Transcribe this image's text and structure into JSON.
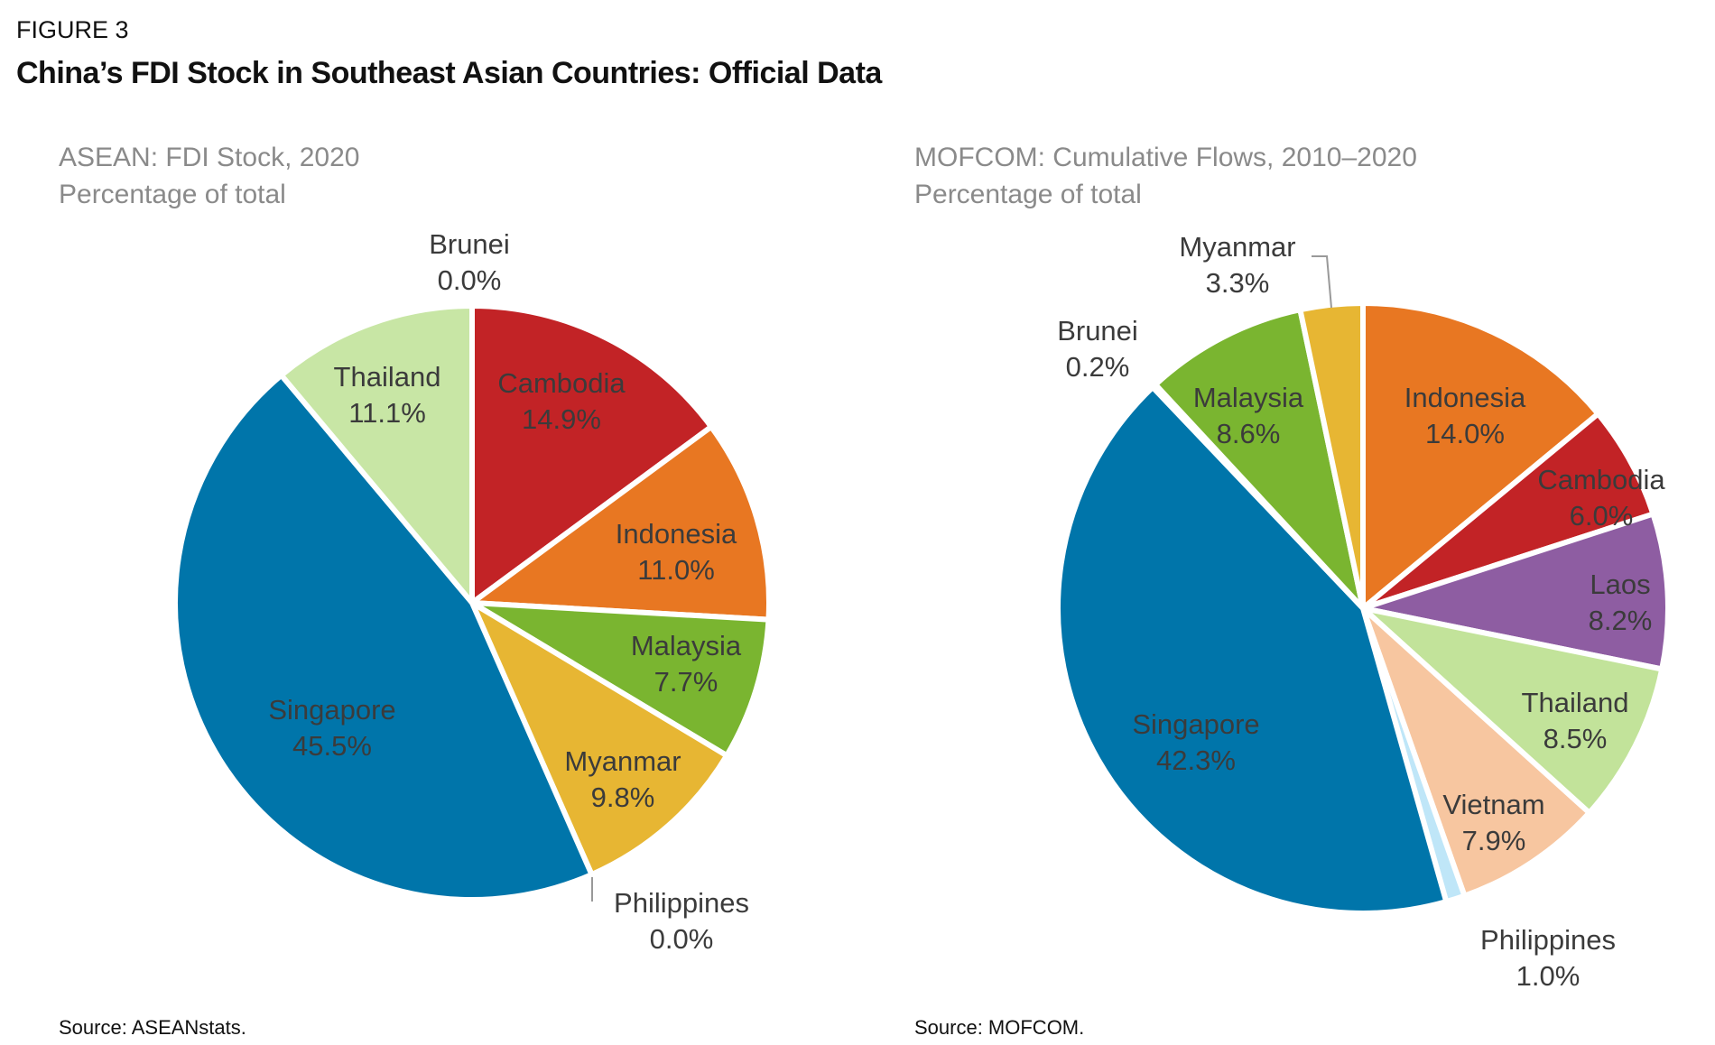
{
  "figure_label": "FIGURE 3",
  "title": "China’s FDI Stock in Southeast Asian Countries: Official Data",
  "chart_data": [
    {
      "type": "pie",
      "title": "ASEAN: FDI Stock, 2020",
      "subtitle": "Percentage of total",
      "source": "Source: ASEANstats.",
      "slices": [
        {
          "label": "Cambodia",
          "value": 14.9,
          "display": "14.9%",
          "color": "#C22326"
        },
        {
          "label": "Indonesia",
          "value": 11.0,
          "display": "11.0%",
          "color": "#E87722"
        },
        {
          "label": "Malaysia",
          "value": 7.7,
          "display": "7.7%",
          "color": "#7AB530"
        },
        {
          "label": "Myanmar",
          "value": 9.8,
          "display": "9.8%",
          "color": "#E7B633"
        },
        {
          "label": "Philippines",
          "value": 0.0,
          "display": "0.0%",
          "color": "#BFE6F8"
        },
        {
          "label": "Singapore",
          "value": 45.5,
          "display": "45.5%",
          "color": "#0075AA"
        },
        {
          "label": "Thailand",
          "value": 11.1,
          "display": "11.1%",
          "color": "#C8E6A5"
        },
        {
          "label": "Brunei",
          "value": 0.0,
          "display": "0.0%",
          "color": "#888888"
        }
      ]
    },
    {
      "type": "pie",
      "title": "MOFCOM: Cumulative Flows, 2010–2020",
      "subtitle": "Percentage of total",
      "source": "Source: MOFCOM.",
      "slices": [
        {
          "label": "Indonesia",
          "value": 14.0,
          "display": "14.0%",
          "color": "#E87722"
        },
        {
          "label": "Cambodia",
          "value": 6.0,
          "display": "6.0%",
          "color": "#C22326"
        },
        {
          "label": "Laos",
          "value": 8.2,
          "display": "8.2%",
          "color": "#8E5DA2"
        },
        {
          "label": "Thailand",
          "value": 8.5,
          "display": "8.5%",
          "color": "#C2E39A"
        },
        {
          "label": "Vietnam",
          "value": 7.9,
          "display": "7.9%",
          "color": "#F7C6A0"
        },
        {
          "label": "Philippines",
          "value": 1.0,
          "display": "1.0%",
          "color": "#BFE6F8"
        },
        {
          "label": "Singapore",
          "value": 42.3,
          "display": "42.3%",
          "color": "#0075AA"
        },
        {
          "label": "Brunei",
          "value": 0.2,
          "display": "0.2%",
          "color": "#888888"
        },
        {
          "label": "Malaysia",
          "value": 8.6,
          "display": "8.6%",
          "color": "#7AB530"
        },
        {
          "label": "Myanmar",
          "value": 3.3,
          "display": "3.3%",
          "color": "#E7B633"
        }
      ]
    }
  ]
}
